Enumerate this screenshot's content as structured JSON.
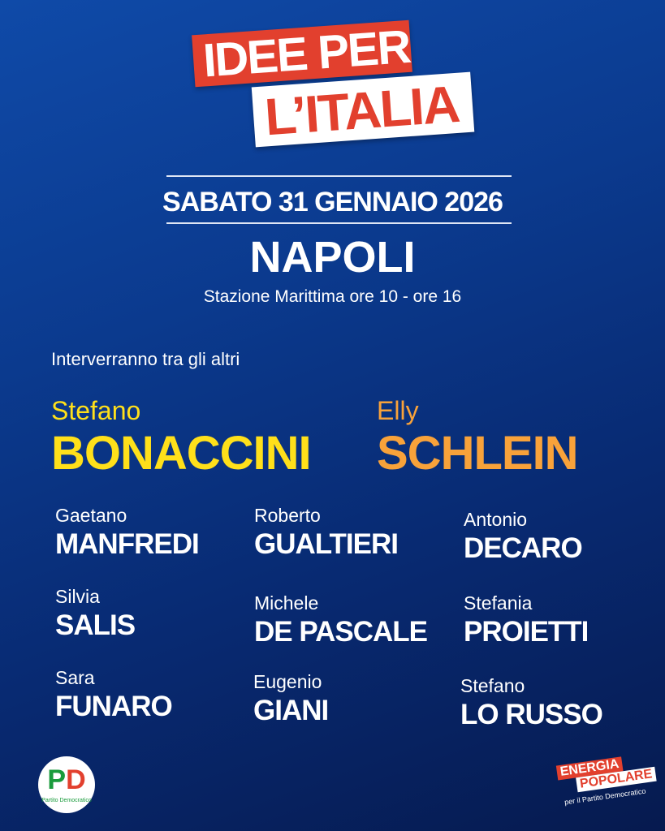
{
  "title": {
    "line1": "IDEE PER",
    "line2": "L’ITALIA"
  },
  "event": {
    "date": "SABATO 31 GENNAIO 2026",
    "city": "NAPOLI",
    "venue": "Stazione Marittima ore 10 - ore 16"
  },
  "intro": "Interverranno tra gli altri",
  "headliners": [
    {
      "first": "Stefano",
      "last": "BONACCINI",
      "color": "#ffe01a"
    },
    {
      "first": "Elly",
      "last": "SCHLEIN",
      "color": "#f8a23a"
    }
  ],
  "speakers": [
    {
      "first": "Gaetano",
      "last": "MANFREDI"
    },
    {
      "first": "Roberto",
      "last": "GUALTIERI"
    },
    {
      "first": "Antonio",
      "last": "DECARO"
    },
    {
      "first": "Silvia",
      "last": "SALIS"
    },
    {
      "first": "Michele",
      "last": "DE PASCALE"
    },
    {
      "first": "Stefania",
      "last": "PROIETTI"
    },
    {
      "first": "Sara",
      "last": "FUNARO"
    },
    {
      "first": "Eugenio",
      "last": "GIANI"
    },
    {
      "first": "Stefano",
      "last": "LO RUSSO"
    }
  ],
  "logos": {
    "pd": {
      "p": "P",
      "d": "D",
      "text": "Partito Democratico"
    },
    "ep": {
      "line1": "ENERGIA",
      "line2": "POPOLARE",
      "line3": "per il Partito Democratico"
    }
  },
  "colors": {
    "background": "#0b3a8e",
    "red": "#e2402e",
    "yellow": "#ffe01a",
    "orange": "#f8a23a"
  }
}
